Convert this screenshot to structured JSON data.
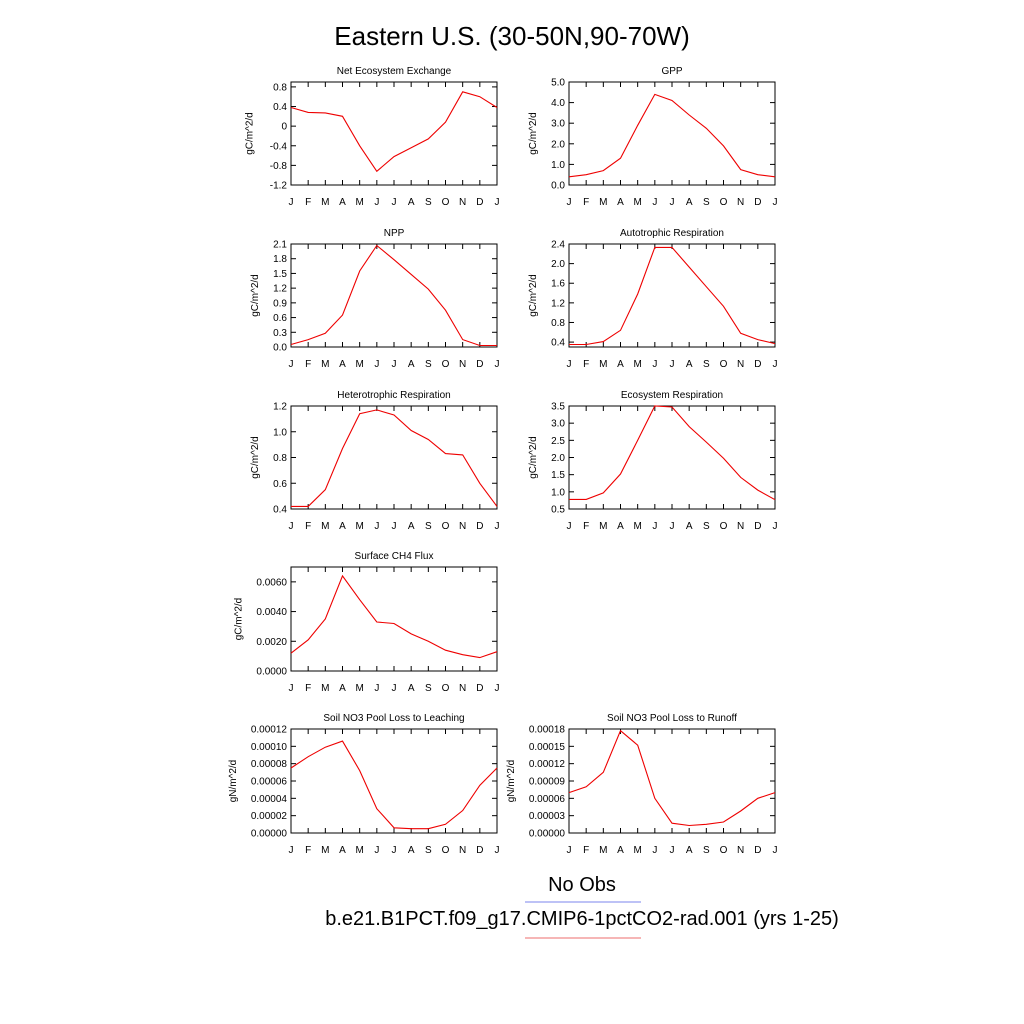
{
  "page": {
    "title": "Eastern U.S. (30-50N,90-70W)"
  },
  "months": [
    "J",
    "F",
    "M",
    "A",
    "M",
    "J",
    "J",
    "A",
    "S",
    "O",
    "N",
    "D",
    "J"
  ],
  "legend": {
    "items": [
      {
        "label": "No Obs",
        "color": "#7b86ee"
      },
      {
        "label": "b.e21.B1PCT.f09_g17.CMIP6-1pctCO2-rad.001 (yrs 1-25)",
        "color": "#ee6e6e"
      }
    ]
  },
  "series_color": "#ee0000",
  "chart_data": [
    {
      "id": "nee",
      "type": "line",
      "title": "Net Ecosystem Exchange",
      "ylabel": "gC/m^2/d",
      "ylim": [
        -1.2,
        0.9
      ],
      "yticks": [
        0.8,
        0.4,
        0.0,
        -0.4,
        -0.8,
        -1.2
      ],
      "tick_labels": [
        "0.8",
        "0.4",
        "0",
        "-0.4",
        "-0.8",
        "-1.2"
      ],
      "values": [
        0.38,
        0.28,
        0.27,
        0.2,
        -0.4,
        -0.92,
        -0.62,
        -0.44,
        -0.26,
        0.08,
        0.7,
        0.6,
        0.38
      ]
    },
    {
      "id": "gpp",
      "type": "line",
      "title": "GPP",
      "ylabel": "gC/m^2/d",
      "ylim": [
        0.0,
        5.0
      ],
      "yticks": [
        5.0,
        4.0,
        3.0,
        2.0,
        1.0,
        0.0
      ],
      "tick_labels": [
        "5.0",
        "4.0",
        "3.0",
        "2.0",
        "1.0",
        "0.0"
      ],
      "values": [
        0.4,
        0.5,
        0.7,
        1.3,
        2.9,
        4.4,
        4.1,
        3.4,
        2.75,
        1.9,
        0.75,
        0.5,
        0.4
      ]
    },
    {
      "id": "npp",
      "type": "line",
      "title": "NPP",
      "ylabel": "gC/m^2/d",
      "ylim": [
        0.0,
        2.1
      ],
      "yticks": [
        2.1,
        1.8,
        1.5,
        1.2,
        0.9,
        0.6,
        0.3,
        0.0
      ],
      "tick_labels": [
        "2.1",
        "1.8",
        "1.5",
        "1.2",
        "0.9",
        "0.6",
        "0.3",
        "0.0"
      ],
      "values": [
        0.05,
        0.15,
        0.28,
        0.65,
        1.55,
        2.07,
        1.78,
        1.48,
        1.18,
        0.75,
        0.15,
        0.03,
        0.03
      ]
    },
    {
      "id": "ar",
      "type": "line",
      "title": "Autotrophic Respiration",
      "ylabel": "gC/m^2/d",
      "ylim": [
        0.3,
        2.4
      ],
      "yticks": [
        2.4,
        2.0,
        1.6,
        1.2,
        0.8,
        0.4
      ],
      "tick_labels": [
        "2.4",
        "2.0",
        "1.6",
        "1.2",
        "0.8",
        "0.4"
      ],
      "values": [
        0.35,
        0.35,
        0.41,
        0.64,
        1.38,
        2.33,
        2.33,
        1.93,
        1.53,
        1.13,
        0.58,
        0.45,
        0.37
      ]
    },
    {
      "id": "hr",
      "type": "line",
      "title": "Heterotrophic Respiration",
      "ylabel": "gC/m^2/d",
      "ylim": [
        0.4,
        1.2
      ],
      "yticks": [
        1.2,
        1.0,
        0.8,
        0.6,
        0.4
      ],
      "tick_labels": [
        "1.2",
        "1.0",
        "0.8",
        "0.6",
        "0.4"
      ],
      "values": [
        0.42,
        0.42,
        0.55,
        0.87,
        1.14,
        1.17,
        1.13,
        1.01,
        0.94,
        0.83,
        0.82,
        0.6,
        0.42
      ]
    },
    {
      "id": "er",
      "type": "line",
      "title": "Ecosystem Respiration",
      "ylabel": "gC/m^2/d",
      "ylim": [
        0.5,
        3.5
      ],
      "yticks": [
        3.5,
        3.0,
        2.5,
        2.0,
        1.5,
        1.0,
        0.5
      ],
      "tick_labels": [
        "3.5",
        "3.0",
        "2.5",
        "2.0",
        "1.5",
        "1.0",
        "0.5"
      ],
      "values": [
        0.78,
        0.78,
        0.97,
        1.52,
        2.5,
        3.5,
        3.47,
        2.9,
        2.45,
        1.98,
        1.42,
        1.05,
        0.77
      ]
    },
    {
      "id": "ch4",
      "type": "line",
      "title": "Surface CH4 Flux",
      "ylabel": "gC/m^2/d",
      "ylim": [
        0.0,
        0.007
      ],
      "yticks": [
        0.006,
        0.004,
        0.002,
        0.0
      ],
      "tick_labels": [
        "0.0060",
        "0.0040",
        "0.0020",
        "0.0000"
      ],
      "values": [
        0.0012,
        0.0021,
        0.0035,
        0.0064,
        0.0048,
        0.0033,
        0.0032,
        0.0025,
        0.002,
        0.0014,
        0.0011,
        0.0009,
        0.0013
      ]
    },
    {
      "id": "leach",
      "type": "line",
      "title": "Soil NO3 Pool Loss to Leaching",
      "ylabel": "gN/m^2/d",
      "ylim": [
        0.0,
        0.00012
      ],
      "yticks": [
        0.00012,
        0.0001,
        8e-05,
        6e-05,
        4e-05,
        2e-05,
        0.0
      ],
      "tick_labels": [
        "0.00012",
        "0.00010",
        "0.00008",
        "0.00006",
        "0.00004",
        "0.00002",
        "0.00000"
      ],
      "values": [
        7.5e-05,
        8.8e-05,
        9.9e-05,
        0.000106,
        7.2e-05,
        2.8e-05,
        6e-06,
        5e-06,
        5e-06,
        1e-05,
        2.6e-05,
        5.5e-05,
        7.5e-05
      ]
    },
    {
      "id": "runoff",
      "type": "line",
      "title": "Soil NO3 Pool Loss to Runoff",
      "ylabel": "gN/m^2/d",
      "ylim": [
        0.0,
        0.00018
      ],
      "yticks": [
        0.00018,
        0.00015,
        0.00012,
        9e-05,
        6e-05,
        3e-05,
        0.0
      ],
      "tick_labels": [
        "0.00018",
        "0.00015",
        "0.00012",
        "0.00009",
        "0.00006",
        "0.00003",
        "0.00000"
      ],
      "values": [
        7e-05,
        8e-05,
        0.000105,
        0.000177,
        0.000152,
        6e-05,
        1.7e-05,
        1.3e-05,
        1.5e-05,
        1.9e-05,
        3.8e-05,
        6e-05,
        7e-05
      ]
    }
  ]
}
